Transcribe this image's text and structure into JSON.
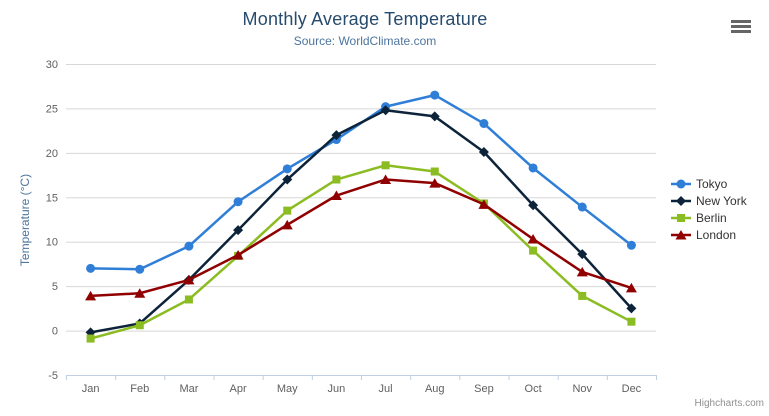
{
  "chart_data": {
    "type": "line",
    "title": "Monthly Average Temperature",
    "subtitle": "Source: WorldClimate.com",
    "categories": [
      "Jan",
      "Feb",
      "Mar",
      "Apr",
      "May",
      "Jun",
      "Jul",
      "Aug",
      "Sep",
      "Oct",
      "Nov",
      "Dec"
    ],
    "series": [
      {
        "name": "Tokyo",
        "color": "#2f7ed8",
        "marker": "circle",
        "values": [
          7.0,
          6.9,
          9.5,
          14.5,
          18.2,
          21.5,
          25.2,
          26.5,
          23.3,
          18.3,
          13.9,
          9.6
        ]
      },
      {
        "name": "New York",
        "color": "#0d233a",
        "marker": "diamond",
        "values": [
          -0.2,
          0.8,
          5.7,
          11.3,
          17.0,
          22.0,
          24.8,
          24.1,
          20.1,
          14.1,
          8.6,
          2.5
        ]
      },
      {
        "name": "Berlin",
        "color": "#8bbc21",
        "marker": "square",
        "values": [
          -0.9,
          0.6,
          3.5,
          8.4,
          13.5,
          17.0,
          18.6,
          17.9,
          14.3,
          9.0,
          3.9,
          1.0
        ]
      },
      {
        "name": "London",
        "color": "#910000",
        "marker": "triangle",
        "values": [
          3.9,
          4.2,
          5.7,
          8.5,
          11.9,
          15.2,
          17.0,
          16.6,
          14.2,
          10.3,
          6.6,
          4.8
        ]
      }
    ],
    "xlabel": "",
    "ylabel": "Temperature (°C)",
    "ylim": [
      -5,
      30
    ],
    "ytick_interval": 5,
    "grid": true,
    "legend_position": "right"
  },
  "toolbar": {
    "export_menu_icon": "hamburger-icon"
  },
  "credit": {
    "label": "Highcharts.com"
  },
  "colors": {
    "title": "#274b6d",
    "subtitle": "#4d759e",
    "axis_label": "#606060",
    "axis_line": "#c0d0e0",
    "gridline": "#d8d8d8",
    "legend_text": "#333333",
    "credit": "#909090",
    "export_icon": "#666666",
    "background": "#ffffff"
  }
}
